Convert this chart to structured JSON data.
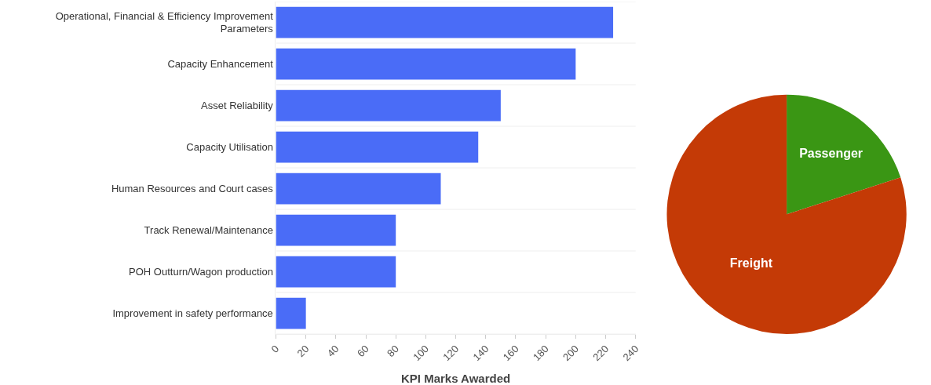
{
  "chart_data": [
    {
      "type": "bar",
      "orientation": "horizontal",
      "xlabel": "KPI Marks Awarded",
      "categories": [
        "Operational, Financial & Efficiency Improvement Parameters",
        "Capacity Enhancement",
        "Asset Reliability",
        "Capacity Utilisation",
        "Human Resources and Court cases",
        "Track Renewal/Maintenance",
        "POH Outturn/Wagon production",
        "Improvement in safety performance"
      ],
      "values": [
        225,
        200,
        150,
        135,
        110,
        80,
        80,
        20
      ],
      "color": "#4a6cf7",
      "xlim": [
        0,
        240
      ],
      "xticks": [
        0,
        20,
        40,
        60,
        80,
        100,
        120,
        140,
        160,
        180,
        200,
        220,
        240
      ],
      "grid": "y"
    },
    {
      "type": "pie",
      "categories": [
        "Passenger",
        "Freight"
      ],
      "values": [
        20,
        80
      ],
      "colors": [
        "#3a9614",
        "#c43a06"
      ]
    }
  ]
}
